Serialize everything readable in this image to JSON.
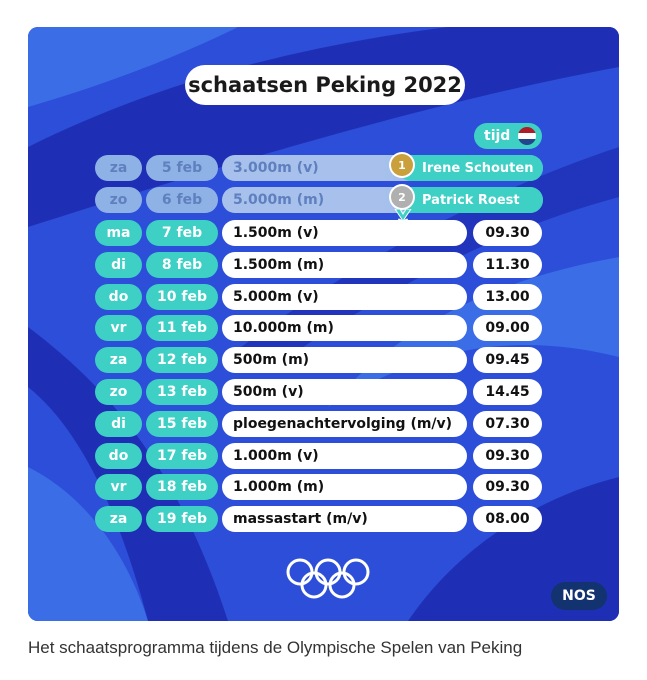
{
  "title": "schaatsen Peking 2022",
  "header_badge": "tijd",
  "rows": [
    {
      "day": "za",
      "date": "5 feb",
      "event": "3.000m (v)",
      "time": "",
      "past": true,
      "medal": "1",
      "medalist": "Irene Schouten"
    },
    {
      "day": "zo",
      "date": "6 feb",
      "event": "5.000m (m)",
      "time": "",
      "past": true,
      "medal": "2",
      "medalist": "Patrick Roest"
    },
    {
      "day": "ma",
      "date": "7 feb",
      "event": "1.500m (v)",
      "time": "09.30"
    },
    {
      "day": "di",
      "date": "8 feb",
      "event": "1.500m (m)",
      "time": "11.30"
    },
    {
      "day": "do",
      "date": "10 feb",
      "event": "5.000m (v)",
      "time": "13.00"
    },
    {
      "day": "vr",
      "date": "11 feb",
      "event": "10.000m (m)",
      "time": "09.00"
    },
    {
      "day": "za",
      "date": "12 feb",
      "event": "500m (m)",
      "time": "09.45"
    },
    {
      "day": "zo",
      "date": "13 feb",
      "event": "500m (v)",
      "time": "14.45"
    },
    {
      "day": "di",
      "date": "15 feb",
      "event": "ploegenachtervolging (m/v)",
      "time": "07.30"
    },
    {
      "day": "do",
      "date": "17 feb",
      "event": "1.000m (v)",
      "time": "09.30"
    },
    {
      "day": "vr",
      "date": "18 feb",
      "event": "1.000m (m)",
      "time": "09.30"
    },
    {
      "day": "za",
      "date": "19 feb",
      "event": "massastart (m/v)",
      "time": "08.00"
    }
  ],
  "brand": "NOS",
  "caption": "Het schaatsprogramma tijdens de Olympische Spelen van Peking",
  "colors": {
    "background": "#2c4ed8",
    "accent": "#3ed0c5",
    "dark_blue": "#1f2fb5",
    "nos_badge": "#12336f"
  },
  "icons": {
    "flag": "netherlands-flag-icon",
    "rings": "olympic-rings-icon",
    "medal_gold": "gold-medal-icon",
    "medal_silver": "silver-medal-icon"
  }
}
